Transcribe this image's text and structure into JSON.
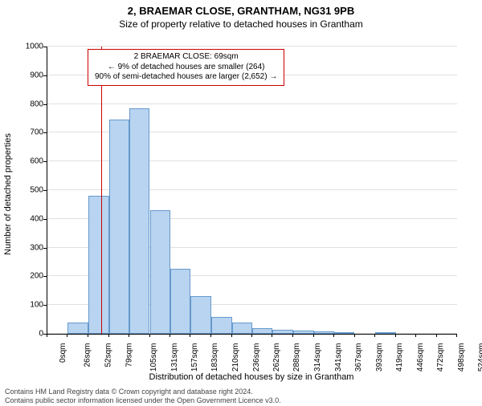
{
  "title": "2, BRAEMAR CLOSE, GRANTHAM, NG31 9PB",
  "subtitle": "Size of property relative to detached houses in Grantham",
  "y_axis_title": "Number of detached properties",
  "x_axis_title": "Distribution of detached houses by size in Grantham",
  "footer_line1": "Contains HM Land Registry data © Crown copyright and database right 2024.",
  "footer_line2": "Contains public sector information licensed under the Open Government Licence v3.0.",
  "chart": {
    "type": "histogram",
    "plot_bg": "#ffffff",
    "grid_color": "#e0e0e0",
    "axis_color": "#000000",
    "bar_fill": "#b8d4f0",
    "bar_border": "#6699cc",
    "text_color": "#000000",
    "ref_line_color": "#cc0000",
    "ref_line_x_value": 69,
    "ylim": [
      0,
      1000
    ],
    "y_ticks": [
      0,
      100,
      200,
      300,
      400,
      500,
      600,
      700,
      800,
      900,
      1000
    ],
    "x_ticks": [
      {
        "v": 0,
        "label": "0sqm"
      },
      {
        "v": 26,
        "label": "26sqm"
      },
      {
        "v": 52,
        "label": "52sqm"
      },
      {
        "v": 79,
        "label": "79sqm"
      },
      {
        "v": 105,
        "label": "105sqm"
      },
      {
        "v": 131,
        "label": "131sqm"
      },
      {
        "v": 157,
        "label": "157sqm"
      },
      {
        "v": 183,
        "label": "183sqm"
      },
      {
        "v": 210,
        "label": "210sqm"
      },
      {
        "v": 236,
        "label": "236sqm"
      },
      {
        "v": 262,
        "label": "262sqm"
      },
      {
        "v": 288,
        "label": "288sqm"
      },
      {
        "v": 314,
        "label": "314sqm"
      },
      {
        "v": 341,
        "label": "341sqm"
      },
      {
        "v": 367,
        "label": "367sqm"
      },
      {
        "v": 393,
        "label": "393sqm"
      },
      {
        "v": 419,
        "label": "419sqm"
      },
      {
        "v": 446,
        "label": "446sqm"
      },
      {
        "v": 472,
        "label": "472sqm"
      },
      {
        "v": 498,
        "label": "498sqm"
      },
      {
        "v": 524,
        "label": "524sqm"
      }
    ],
    "bars": [
      {
        "x0": 0,
        "x1": 26,
        "y": 0
      },
      {
        "x0": 26,
        "x1": 52,
        "y": 40
      },
      {
        "x0": 52,
        "x1": 79,
        "y": 480
      },
      {
        "x0": 79,
        "x1": 105,
        "y": 745
      },
      {
        "x0": 105,
        "x1": 131,
        "y": 785
      },
      {
        "x0": 131,
        "x1": 157,
        "y": 430
      },
      {
        "x0": 157,
        "x1": 183,
        "y": 225
      },
      {
        "x0": 183,
        "x1": 210,
        "y": 130
      },
      {
        "x0": 210,
        "x1": 236,
        "y": 60
      },
      {
        "x0": 236,
        "x1": 262,
        "y": 40
      },
      {
        "x0": 262,
        "x1": 288,
        "y": 20
      },
      {
        "x0": 288,
        "x1": 314,
        "y": 15
      },
      {
        "x0": 314,
        "x1": 341,
        "y": 12
      },
      {
        "x0": 341,
        "x1": 367,
        "y": 8
      },
      {
        "x0": 367,
        "x1": 393,
        "y": 5
      },
      {
        "x0": 393,
        "x1": 419,
        "y": 0
      },
      {
        "x0": 419,
        "x1": 446,
        "y": 6
      },
      {
        "x0": 446,
        "x1": 472,
        "y": 0
      },
      {
        "x0": 472,
        "x1": 498,
        "y": 0
      },
      {
        "x0": 498,
        "x1": 524,
        "y": 0
      }
    ],
    "x_domain": [
      0,
      524
    ],
    "tick_label_fontsize": 10,
    "axis_title_fontsize": 11
  },
  "annotation": {
    "border_color": "#cc0000",
    "bg": "#ffffff",
    "line1": "2 BRAEMAR CLOSE: 69sqm",
    "line2": "← 9% of detached houses are smaller (264)",
    "line3": "90% of semi-detached houses are larger (2,652) →"
  }
}
